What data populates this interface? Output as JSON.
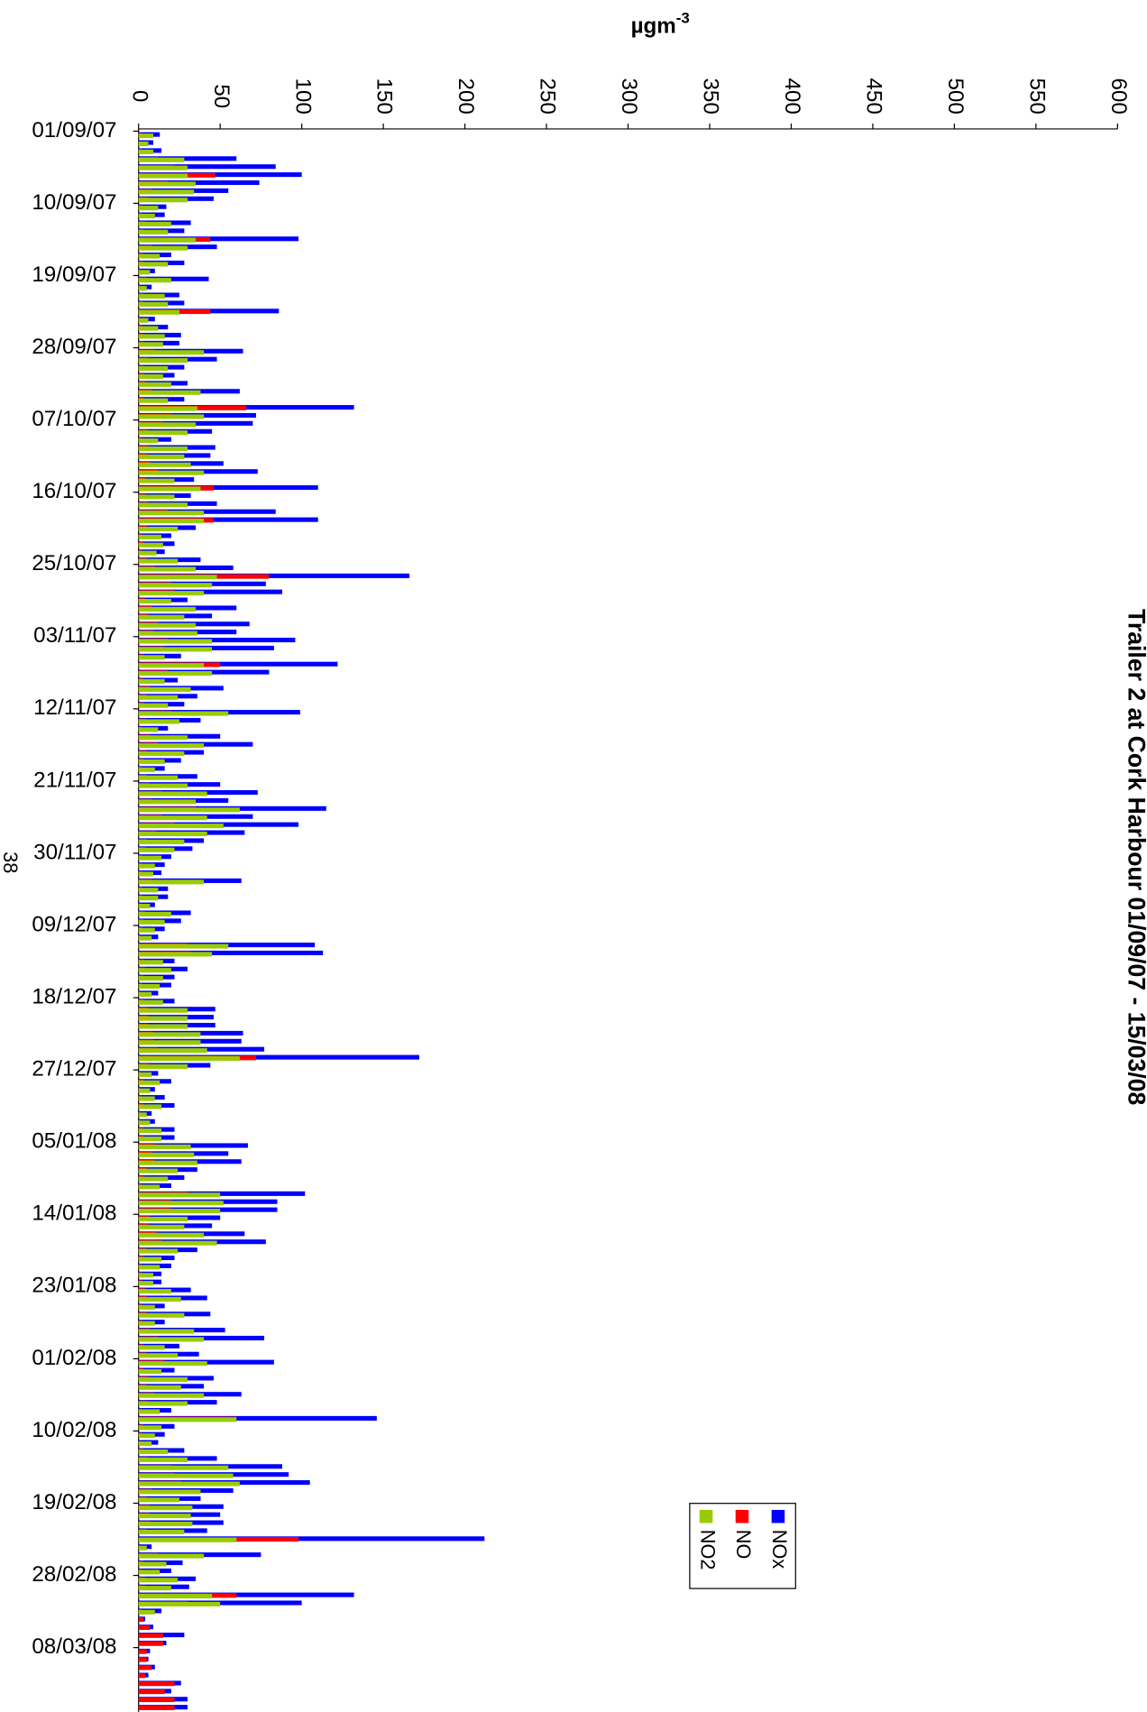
{
  "chart_data": {
    "type": "bar",
    "orientation": "horizontal",
    "title": "Trailer 2 at Cork Harbour 01/09/07 - 15/03/08",
    "y_label": "µgm",
    "y_label_superscript": "-3",
    "page_number": "38",
    "ylim": [
      0,
      600
    ],
    "yticks": [
      0,
      50,
      100,
      150,
      200,
      250,
      300,
      350,
      400,
      450,
      500,
      550,
      600
    ],
    "grid": false,
    "categories": [
      "01/09/07",
      null,
      null,
      null,
      null,
      null,
      null,
      null,
      null,
      "10/09/07",
      null,
      null,
      null,
      null,
      null,
      null,
      null,
      null,
      "19/09/07",
      null,
      null,
      null,
      null,
      null,
      null,
      null,
      null,
      "28/09/07",
      null,
      null,
      null,
      null,
      null,
      null,
      null,
      null,
      "07/10/07",
      null,
      null,
      null,
      null,
      null,
      null,
      null,
      null,
      "16/10/07",
      null,
      null,
      null,
      null,
      null,
      null,
      null,
      null,
      "25/10/07",
      null,
      null,
      null,
      null,
      null,
      null,
      null,
      null,
      "03/11/07",
      null,
      null,
      null,
      null,
      null,
      null,
      null,
      null,
      "12/11/07",
      null,
      null,
      null,
      null,
      null,
      null,
      null,
      null,
      "21/11/07",
      null,
      null,
      null,
      null,
      null,
      null,
      null,
      null,
      "30/11/07",
      null,
      null,
      null,
      null,
      null,
      null,
      null,
      null,
      "09/12/07",
      null,
      null,
      null,
      null,
      null,
      null,
      null,
      null,
      "18/12/07",
      null,
      null,
      null,
      null,
      null,
      null,
      null,
      null,
      "27/12/07",
      null,
      null,
      null,
      null,
      null,
      null,
      null,
      null,
      "05/01/08",
      null,
      null,
      null,
      null,
      null,
      null,
      null,
      null,
      "14/01/08",
      null,
      null,
      null,
      null,
      null,
      null,
      null,
      null,
      "23/01/08",
      null,
      null,
      null,
      null,
      null,
      null,
      null,
      null,
      "01/02/08",
      null,
      null,
      null,
      null,
      null,
      null,
      null,
      null,
      "10/02/08",
      null,
      null,
      null,
      null,
      null,
      null,
      null,
      null,
      "19/02/08",
      null,
      null,
      null,
      null,
      null,
      null,
      null,
      null,
      "28/02/08",
      null,
      null,
      null,
      null,
      null,
      null,
      null,
      null,
      "08/03/08",
      null,
      null,
      null,
      null,
      null,
      null,
      null
    ],
    "series": [
      {
        "name": "NOx",
        "color": "#0000ff",
        "values": [
          13,
          9,
          14,
          60,
          84,
          100,
          74,
          55,
          46,
          17,
          16,
          32,
          28,
          98,
          48,
          20,
          28,
          10,
          43,
          8,
          25,
          28,
          86,
          10,
          18,
          26,
          25,
          64,
          48,
          28,
          22,
          30,
          62,
          28,
          132,
          72,
          70,
          45,
          20,
          47,
          44,
          52,
          73,
          34,
          110,
          32,
          48,
          84,
          110,
          35,
          20,
          22,
          16,
          38,
          58,
          166,
          78,
          88,
          30,
          60,
          45,
          68,
          60,
          96,
          83,
          26,
          122,
          80,
          24,
          52,
          36,
          28,
          99,
          38,
          18,
          50,
          70,
          40,
          26,
          16,
          36,
          50,
          73,
          55,
          115,
          70,
          98,
          65,
          40,
          33,
          20,
          16,
          14,
          63,
          18,
          18,
          10,
          32,
          26,
          16,
          12,
          108,
          113,
          22,
          30,
          22,
          20,
          12,
          22,
          47,
          46,
          47,
          64,
          63,
          77,
          172,
          44,
          12,
          20,
          10,
          16,
          22,
          8,
          10,
          22,
          22,
          67,
          55,
          63,
          36,
          28,
          20,
          102,
          85,
          85,
          50,
          45,
          65,
          78,
          36,
          22,
          20,
          14,
          14,
          32,
          42,
          16,
          44,
          16,
          53,
          77,
          25,
          37,
          83,
          22,
          46,
          40,
          63,
          48,
          20,
          146,
          22,
          16,
          12,
          28,
          48,
          88,
          92,
          105,
          58,
          38,
          52,
          50,
          52,
          42,
          212,
          8,
          75,
          27,
          20,
          35,
          31,
          132,
          100,
          14,
          4,
          9,
          28,
          17,
          7,
          6,
          10,
          6,
          26,
          20,
          30,
          30
        ]
      },
      {
        "name": "NO",
        "color": "#ff0000",
        "values": [
          2,
          1,
          2,
          12,
          22,
          47,
          18,
          8,
          6,
          2,
          2,
          4,
          3,
          44,
          8,
          3,
          3,
          1,
          5,
          1,
          3,
          3,
          44,
          1,
          2,
          3,
          3,
          10,
          6,
          3,
          3,
          4,
          8,
          3,
          66,
          20,
          15,
          6,
          2,
          6,
          5,
          7,
          12,
          4,
          46,
          4,
          6,
          18,
          46,
          5,
          2,
          3,
          2,
          5,
          10,
          80,
          20,
          22,
          4,
          8,
          6,
          12,
          9,
          18,
          16,
          3,
          50,
          18,
          3,
          7,
          5,
          3,
          20,
          5,
          2,
          7,
          12,
          5,
          3,
          2,
          5,
          7,
          14,
          8,
          35,
          14,
          22,
          11,
          5,
          4,
          2,
          2,
          2,
          8,
          2,
          2,
          1,
          4,
          3,
          2,
          1,
          30,
          32,
          3,
          4,
          3,
          2,
          1,
          3,
          6,
          6,
          6,
          9,
          9,
          12,
          72,
          6,
          1,
          3,
          1,
          2,
          3,
          1,
          1,
          3,
          3,
          10,
          8,
          10,
          5,
          3,
          2,
          30,
          20,
          20,
          7,
          6,
          11,
          14,
          5,
          3,
          2,
          2,
          2,
          4,
          5,
          2,
          5,
          2,
          7,
          12,
          3,
          5,
          16,
          3,
          6,
          5,
          10,
          6,
          2,
          60,
          3,
          2,
          1,
          3,
          6,
          20,
          22,
          26,
          8,
          5,
          7,
          7,
          7,
          5,
          98,
          1,
          12,
          3,
          2,
          4,
          4,
          60,
          30,
          2,
          3,
          7,
          15,
          15,
          5,
          5,
          8,
          4,
          22,
          16,
          22,
          22
        ]
      },
      {
        "name": "NO2",
        "color": "#99cc00",
        "values": [
          9,
          6,
          9,
          28,
          30,
          30,
          35,
          34,
          30,
          12,
          10,
          20,
          18,
          35,
          30,
          13,
          18,
          7,
          20,
          5,
          16,
          18,
          25,
          6,
          12,
          16,
          15,
          40,
          30,
          18,
          15,
          20,
          38,
          18,
          36,
          40,
          35,
          30,
          12,
          30,
          28,
          32,
          40,
          22,
          38,
          22,
          30,
          40,
          40,
          24,
          14,
          15,
          11,
          24,
          35,
          48,
          45,
          40,
          20,
          35,
          28,
          35,
          36,
          45,
          45,
          16,
          40,
          45,
          16,
          32,
          24,
          18,
          55,
          25,
          12,
          30,
          40,
          28,
          16,
          10,
          24,
          30,
          42,
          35,
          62,
          42,
          52,
          42,
          28,
          22,
          14,
          10,
          9,
          40,
          12,
          12,
          7,
          20,
          16,
          10,
          8,
          55,
          45,
          15,
          20,
          15,
          13,
          8,
          15,
          30,
          30,
          30,
          38,
          38,
          42,
          62,
          30,
          8,
          13,
          7,
          10,
          14,
          5,
          7,
          14,
          14,
          32,
          34,
          36,
          24,
          18,
          13,
          50,
          52,
          50,
          30,
          28,
          40,
          48,
          24,
          14,
          13,
          9,
          9,
          20,
          26,
          10,
          28,
          10,
          34,
          40,
          16,
          24,
          42,
          14,
          30,
          26,
          40,
          30,
          13,
          60,
          14,
          10,
          8,
          18,
          30,
          55,
          58,
          62,
          38,
          25,
          33,
          32,
          33,
          28,
          60,
          5,
          40,
          17,
          13,
          24,
          20,
          45,
          50,
          10,
          null,
          null,
          null,
          null,
          null,
          null,
          null,
          null,
          null,
          null,
          null,
          null
        ]
      }
    ]
  }
}
